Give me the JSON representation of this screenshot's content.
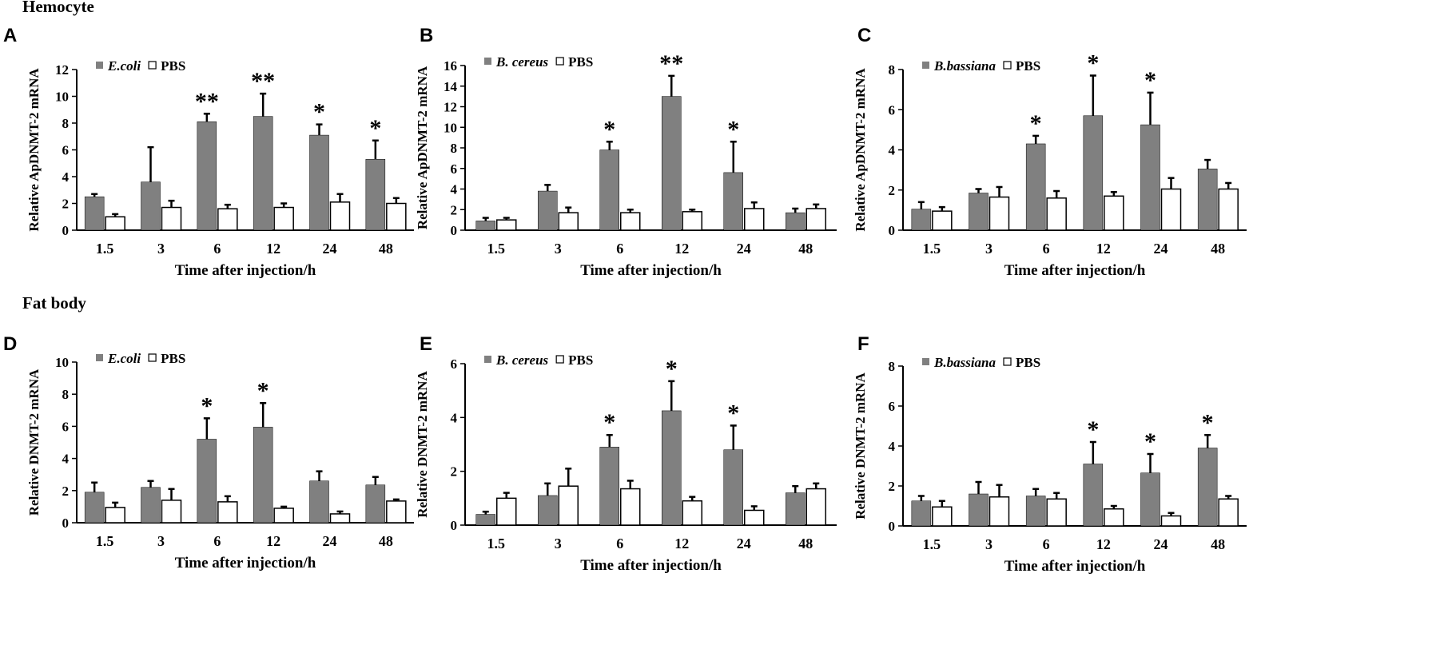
{
  "figure": {
    "section_top": "Hemocyte",
    "section_bottom": "Fat body"
  },
  "colors": {
    "treatment": "#808080",
    "pbs": "#ffffff",
    "stroke": "#000000"
  },
  "chart_data": [
    {
      "panel": "A",
      "type": "bar",
      "legend": [
        "E.coli",
        "PBS"
      ],
      "legend_italic": [
        true,
        false
      ],
      "categories": [
        "1.5",
        "3",
        "6",
        "12",
        "24",
        "48"
      ],
      "xlabel": "Time after injection/h",
      "ylabel": "Relative ApDNMT-2 mRNA",
      "ylim": [
        0,
        12
      ],
      "yticks": [
        0,
        2,
        4,
        6,
        8,
        10,
        12
      ],
      "series": [
        {
          "name": "E.coli",
          "values": [
            2.5,
            3.6,
            8.1,
            8.5,
            7.1,
            5.3
          ],
          "errors": [
            0.2,
            2.6,
            0.6,
            1.7,
            0.8,
            1.4
          ]
        },
        {
          "name": "PBS",
          "values": [
            1.0,
            1.7,
            1.6,
            1.7,
            2.1,
            2.0
          ],
          "errors": [
            0.2,
            0.5,
            0.3,
            0.3,
            0.6,
            0.4
          ]
        }
      ],
      "significance": [
        "",
        "",
        "**",
        "**",
        "*",
        "*"
      ]
    },
    {
      "panel": "B",
      "type": "bar",
      "legend": [
        "B. cereus",
        "PBS"
      ],
      "legend_italic": [
        true,
        false
      ],
      "categories": [
        "1.5",
        "3",
        "6",
        "12",
        "24",
        "48"
      ],
      "xlabel": "Time after injection/h",
      "ylabel": "Relative ApDNMT-2 mRNA",
      "ylim": [
        0,
        16
      ],
      "yticks": [
        0,
        2,
        4,
        6,
        8,
        10,
        12,
        14,
        16
      ],
      "series": [
        {
          "name": "B. cereus",
          "values": [
            0.9,
            3.8,
            7.8,
            13.0,
            5.6,
            1.7
          ],
          "errors": [
            0.3,
            0.6,
            0.8,
            2.0,
            3.0,
            0.4
          ]
        },
        {
          "name": "PBS",
          "values": [
            1.0,
            1.7,
            1.7,
            1.8,
            2.1,
            2.1
          ],
          "errors": [
            0.2,
            0.5,
            0.3,
            0.2,
            0.6,
            0.4
          ]
        }
      ],
      "significance": [
        "",
        "",
        "*",
        "**",
        "*",
        ""
      ]
    },
    {
      "panel": "C",
      "type": "bar",
      "legend": [
        "B.bassiana",
        "PBS"
      ],
      "legend_italic": [
        true,
        false
      ],
      "categories": [
        "1.5",
        "3",
        "6",
        "12",
        "24",
        "48"
      ],
      "xlabel": "Time after injection/h",
      "ylabel": "Relative ApDNMT-2 mRNA",
      "ylim": [
        0,
        8
      ],
      "yticks": [
        0,
        2,
        4,
        6,
        8
      ],
      "series": [
        {
          "name": "B.bassiana",
          "values": [
            1.05,
            1.85,
            4.3,
            5.7,
            5.25,
            3.05
          ],
          "errors": [
            0.35,
            0.2,
            0.4,
            2.0,
            1.6,
            0.45
          ]
        },
        {
          "name": "PBS",
          "values": [
            0.95,
            1.65,
            1.6,
            1.7,
            2.05,
            2.05
          ],
          "errors": [
            0.2,
            0.5,
            0.35,
            0.2,
            0.55,
            0.3
          ]
        }
      ],
      "significance": [
        "",
        "",
        "*",
        "*",
        "*",
        ""
      ]
    },
    {
      "panel": "D",
      "type": "bar",
      "legend": [
        "E.coli",
        "PBS"
      ],
      "legend_italic": [
        true,
        false
      ],
      "categories": [
        "1.5",
        "3",
        "6",
        "12",
        "24",
        "48"
      ],
      "xlabel": "Time after injection/h",
      "ylabel": "Relative DNMT-2 mRNA",
      "ylim": [
        0,
        10
      ],
      "yticks": [
        0,
        2,
        4,
        6,
        8,
        10
      ],
      "series": [
        {
          "name": "E.coli",
          "values": [
            1.9,
            2.2,
            5.2,
            5.95,
            2.6,
            2.35
          ],
          "errors": [
            0.6,
            0.4,
            1.3,
            1.5,
            0.6,
            0.5
          ]
        },
        {
          "name": "PBS",
          "values": [
            0.95,
            1.4,
            1.3,
            0.9,
            0.55,
            1.35
          ],
          "errors": [
            0.3,
            0.7,
            0.35,
            0.1,
            0.15,
            0.1
          ]
        }
      ],
      "significance": [
        "",
        "",
        "*",
        "*",
        "",
        ""
      ]
    },
    {
      "panel": "E",
      "type": "bar",
      "legend": [
        "B. cereus",
        "PBS"
      ],
      "legend_italic": [
        true,
        false
      ],
      "categories": [
        "1.5",
        "3",
        "6",
        "12",
        "24",
        "48"
      ],
      "xlabel": "Time after injection/h",
      "ylabel": "Relative DNMT-2 mRNA",
      "ylim": [
        0,
        6
      ],
      "yticks": [
        0,
        2,
        4,
        6
      ],
      "series": [
        {
          "name": "B. cereus",
          "values": [
            0.4,
            1.1,
            2.9,
            4.25,
            2.8,
            1.2
          ],
          "errors": [
            0.1,
            0.45,
            0.45,
            1.1,
            0.9,
            0.25
          ]
        },
        {
          "name": "PBS",
          "values": [
            1.0,
            1.45,
            1.35,
            0.9,
            0.55,
            1.35
          ],
          "errors": [
            0.2,
            0.65,
            0.3,
            0.15,
            0.15,
            0.2
          ]
        }
      ],
      "significance": [
        "",
        "",
        "*",
        "*",
        "*",
        ""
      ]
    },
    {
      "panel": "F",
      "type": "bar",
      "legend": [
        "B.bassiana",
        "PBS"
      ],
      "legend_italic": [
        true,
        false
      ],
      "categories": [
        "1.5",
        "3",
        "6",
        "12",
        "24",
        "48"
      ],
      "xlabel": "Time after injection/h",
      "ylabel": "Relative DNMT-2 mRNA",
      "ylim": [
        0,
        8
      ],
      "yticks": [
        0,
        2,
        4,
        6,
        8
      ],
      "series": [
        {
          "name": "B.bassiana",
          "values": [
            1.25,
            1.6,
            1.5,
            3.1,
            2.65,
            3.9
          ],
          "errors": [
            0.25,
            0.6,
            0.35,
            1.1,
            0.95,
            0.65
          ]
        },
        {
          "name": "PBS",
          "values": [
            0.95,
            1.45,
            1.35,
            0.85,
            0.5,
            1.35
          ],
          "errors": [
            0.3,
            0.6,
            0.3,
            0.15,
            0.15,
            0.15
          ]
        }
      ],
      "significance": [
        "",
        "",
        "",
        "*",
        "*",
        "*"
      ]
    }
  ]
}
